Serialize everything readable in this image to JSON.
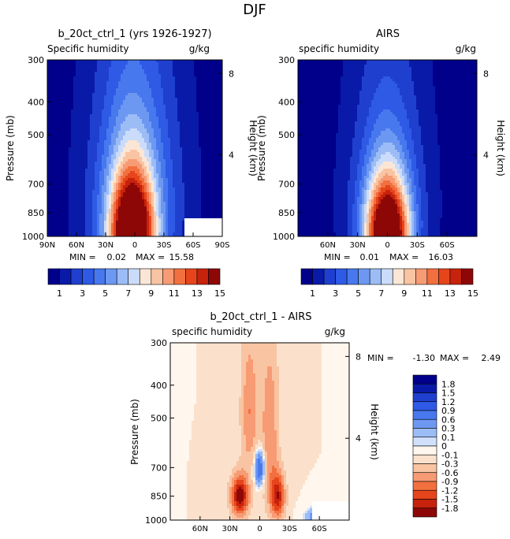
{
  "figure": {
    "title": "DJF"
  },
  "chart_data": [
    {
      "type": "heatmap",
      "title": "b_20ct_ctrl_1 (yrs 1926-1927)",
      "subtitle_left": "Specific humidity",
      "units": "g/kg",
      "ylabel": "Pressure (mb)",
      "y2label": "Height (km)",
      "yticks": [
        "300",
        "400",
        "500",
        "700",
        "850",
        "1000"
      ],
      "y2ticks": [
        "8",
        "4"
      ],
      "xticks": [
        "90N",
        "60N",
        "30N",
        "0",
        "30S",
        "60S",
        "90S"
      ],
      "xlim": [
        "90N",
        "90S"
      ],
      "ylim": [
        1000,
        300
      ],
      "min_label": "MIN =",
      "min_value": "0.02",
      "max_label": "MAX =",
      "max_value": "15.58",
      "field": {
        "background": 0.5,
        "peak": 15.58,
        "peak_lat": 3,
        "sources": [
          {
            "lat": 3,
            "pres": 980,
            "amp": 15.5,
            "sx": 16,
            "sy": 260
          },
          {
            "lat": 0,
            "pres": 780,
            "amp": 5.0,
            "sx": 32,
            "sy": 480
          }
        ]
      }
    },
    {
      "type": "heatmap",
      "title": "AIRS",
      "subtitle_left": "specific humidity",
      "units": "g/kg",
      "ylabel": "Pressure (mb)",
      "y2label": "Height (km)",
      "yticks": [
        "300",
        "400",
        "500",
        "700",
        "850",
        "1000"
      ],
      "y2ticks": [
        "8",
        "4"
      ],
      "xticks": [
        "60N",
        "30N",
        "0",
        "30S",
        "60S"
      ],
      "min_label": "MIN =",
      "min_value": "0.01",
      "max_label": "MAX =",
      "max_value": "16.03",
      "field": {
        "background": 0.5,
        "peak": 16.03,
        "peak_lat": 0,
        "sources": [
          {
            "lat": 0,
            "pres": 990,
            "amp": 16.0,
            "sx": 15,
            "sy": 240
          },
          {
            "lat": 0,
            "pres": 780,
            "amp": 3.6,
            "sx": 27,
            "sy": 430
          }
        ]
      }
    },
    {
      "type": "heatmap",
      "title": "b_20ct_ctrl_1 - AIRS",
      "subtitle_left": "specific humidity",
      "units": "g/kg",
      "ylabel": "Pressure (mb)",
      "y2label": "Height (km)",
      "yticks": [
        "300",
        "400",
        "500",
        "700",
        "850",
        "1000"
      ],
      "y2ticks": [
        "8",
        "4"
      ],
      "xticks": [
        "60N",
        "30N",
        "0",
        "30S",
        "60S"
      ],
      "min_label": "MIN =",
      "min_value": "-1.30",
      "max_label": "MAX =",
      "max_value": "2.49",
      "field": {
        "background": 0.1,
        "features": [
          {
            "lat": 20,
            "pres": 850,
            "amp": 2.0,
            "sx": 6,
            "sy": 80
          },
          {
            "lat": -18,
            "pres": 850,
            "amp": 1.6,
            "sx": 5,
            "sy": 90
          },
          {
            "lat": 10,
            "pres": 480,
            "amp": 0.8,
            "sx": 6,
            "sy": 160
          },
          {
            "lat": -10,
            "pres": 560,
            "amp": 0.8,
            "sx": 6,
            "sy": 220
          },
          {
            "lat": 0,
            "pres": 700,
            "amp": -1.2,
            "sx": 4,
            "sy": 60
          },
          {
            "lat": -65,
            "pres": 985,
            "amp": -1.3,
            "sx": 10,
            "sy": 40
          }
        ]
      }
    }
  ],
  "colorbar_main": {
    "colors": [
      "#00008b",
      "#0a1aa8",
      "#1f3fcf",
      "#2e5ae6",
      "#4878ee",
      "#6d98f2",
      "#9cbcf6",
      "#cbdcfa",
      "#fbe6d5",
      "#f9c4a2",
      "#f79b74",
      "#f2703f",
      "#e6451c",
      "#c6220c",
      "#8e0707"
    ],
    "labels": [
      "1",
      "3",
      "5",
      "7",
      "9",
      "11",
      "13",
      "15"
    ]
  },
  "colorbar_diff": {
    "colors": [
      "#00008b",
      "#0a1aa8",
      "#1f3fcf",
      "#2e5ae6",
      "#4878ee",
      "#6d98f2",
      "#9cbcf6",
      "#d0e0fa",
      "#fff6ee",
      "#fbe1cc",
      "#f9c4a2",
      "#f79b74",
      "#f2703f",
      "#e6451c",
      "#c6220c",
      "#8e0707"
    ],
    "labels": [
      "1.8",
      "1.5",
      "1.2",
      "0.9",
      "0.6",
      "0.3",
      "0.1",
      "0",
      "-0.1",
      "-0.3",
      "-0.6",
      "-0.9",
      "-1.2",
      "-1.5",
      "-1.8"
    ]
  }
}
